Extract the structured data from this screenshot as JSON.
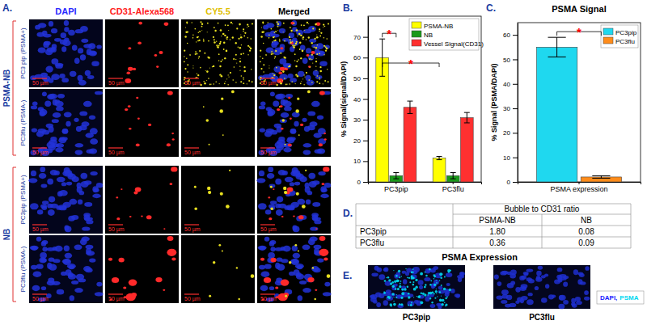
{
  "chart_data": [
    {
      "type": "bar",
      "panel_label": "B.",
      "ylabel": "% Signal(signal/DAPI)",
      "categories": [
        "PC3pip",
        "PC3flu"
      ],
      "series": [
        {
          "name": "PSMA-NB",
          "color": "#ffff00",
          "values": [
            60,
            11.5
          ],
          "errors": [
            9,
            0.8
          ]
        },
        {
          "name": "NB",
          "color": "#1a9a1a",
          "values": [
            3,
            3
          ],
          "errors": [
            1.5,
            1.5
          ]
        },
        {
          "name": "Vessel Signal(CD31)",
          "color": "#ff3030",
          "values": [
            36,
            31
          ],
          "errors": [
            3,
            2.5
          ]
        }
      ],
      "ylim": [
        0,
        80
      ],
      "yticks": [
        0,
        10,
        20,
        30,
        40,
        50,
        60,
        70
      ],
      "legend": "upper right",
      "annotations": [
        {
          "text": "*",
          "color": "#ff0000"
        },
        {
          "text": "*",
          "color": "#ff0000"
        }
      ]
    },
    {
      "type": "bar",
      "panel_label": "C.",
      "title": "PSMA Signal",
      "ylabel": "% Signal (PSMA/DAPI)",
      "categories": [
        "PSMA expression"
      ],
      "series": [
        {
          "name": "PC3pip",
          "color": "#1fd8ef",
          "values": [
            55
          ],
          "errors": [
            4
          ]
        },
        {
          "name": "PC3flu",
          "color": "#ff8c1a",
          "values": [
            2
          ],
          "errors": [
            0.5
          ]
        }
      ],
      "ylim": [
        0,
        65
      ],
      "yticks": [
        0,
        10,
        20,
        30,
        40,
        50,
        60
      ],
      "legend": "upper right",
      "annotations": [
        {
          "text": "*",
          "color": "#ff0000"
        }
      ]
    }
  ],
  "microscopy": {
    "panel_label": "A.",
    "columns": [
      {
        "label": "DAPI",
        "color": "#2a2aff"
      },
      {
        "label": "CD31-Alexa568",
        "color": "#ff2020"
      },
      {
        "label": "CY5.5",
        "color": "#e0c000"
      },
      {
        "label": "Merged",
        "color": "#000000"
      }
    ],
    "groups": [
      {
        "label": "PSMA-NB",
        "rows": [
          "PC3 pip (PSMA+)",
          "PC3flu (PSMA-)"
        ]
      },
      {
        "label": "NB",
        "rows": [
          "PC3pip (PSMA+)",
          "PC3flu (PSMA-)"
        ]
      }
    ],
    "scale_bar": "50 µm"
  },
  "table": {
    "panel_label": "D.",
    "group_header": "Bubble to CD31 ratio",
    "columns": [
      "PSMA-NB",
      "NB"
    ],
    "rows": [
      {
        "label": "PC3pip",
        "cells": [
          "1.80",
          "0.08"
        ]
      },
      {
        "label": "PC3flu",
        "cells": [
          "0.36",
          "0.09"
        ]
      }
    ]
  },
  "psma_expression": {
    "panel_label": "E.",
    "title": "PSMA Expression",
    "images": [
      "PC3pip",
      "PC3flu"
    ],
    "legend_items": [
      {
        "text": "DAPI,",
        "color": "#1a1aff"
      },
      {
        "text": "PSMA",
        "color": "#00d8f0"
      }
    ]
  }
}
